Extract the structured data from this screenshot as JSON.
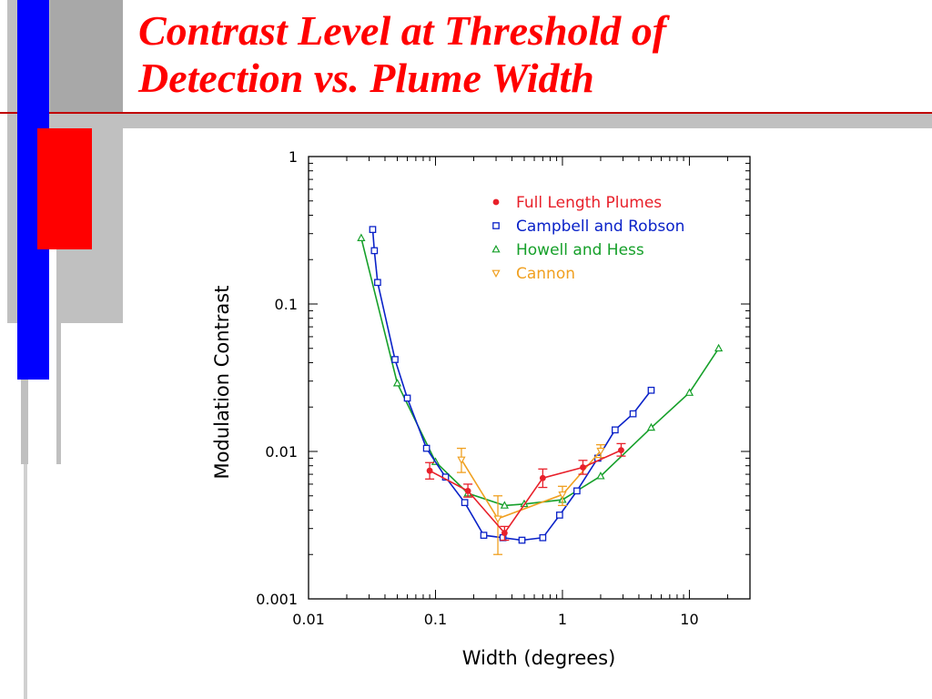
{
  "slide": {
    "title_line1": "Contrast Level at Threshold of",
    "title_line2": "Detection vs.  Plume Width",
    "colors": {
      "title": "#ff0000",
      "bar_blue": "#0000ff",
      "bar_red": "#ff0000",
      "bar_gray": "#c0c0c0",
      "rule": "#c00000"
    }
  },
  "chart_data": {
    "type": "line",
    "xlabel": "Width (degrees)",
    "ylabel": "Modulation Contrast",
    "xscale": "log",
    "yscale": "log",
    "xlim": [
      0.01,
      30
    ],
    "ylim": [
      0.001,
      1
    ],
    "x_ticks": [
      0.01,
      0.1,
      1,
      10
    ],
    "x_tick_labels": [
      "0.01",
      "0.1",
      "1",
      "10"
    ],
    "y_ticks": [
      0.001,
      0.01,
      0.1,
      1
    ],
    "y_tick_labels": [
      "0.001",
      "0.01",
      "0.1",
      "1"
    ],
    "grid": false,
    "legend_position": "top-right",
    "series": [
      {
        "name": "Full Length Plumes",
        "color": "#e8202a",
        "marker": "dot",
        "points": [
          {
            "x": 0.09,
            "y": 0.0074,
            "lo": 0.0065,
            "hi": 0.0084
          },
          {
            "x": 0.18,
            "y": 0.0054,
            "lo": 0.0049,
            "hi": 0.006
          },
          {
            "x": 0.35,
            "y": 0.0028,
            "lo": 0.0025,
            "hi": 0.0031
          },
          {
            "x": 0.7,
            "y": 0.0066,
            "lo": 0.0057,
            "hi": 0.0076
          },
          {
            "x": 1.45,
            "y": 0.0078,
            "lo": 0.007,
            "hi": 0.0087
          },
          {
            "x": 2.9,
            "y": 0.0102,
            "lo": 0.0093,
            "hi": 0.0113
          }
        ]
      },
      {
        "name": "Campbell and Robson",
        "color": "#0a22c8",
        "marker": "square",
        "points": [
          {
            "x": 0.032,
            "y": 0.32
          },
          {
            "x": 0.033,
            "y": 0.23
          },
          {
            "x": 0.035,
            "y": 0.14
          },
          {
            "x": 0.048,
            "y": 0.042
          },
          {
            "x": 0.06,
            "y": 0.023
          },
          {
            "x": 0.085,
            "y": 0.0105
          },
          {
            "x": 0.12,
            "y": 0.0067
          },
          {
            "x": 0.17,
            "y": 0.0045
          },
          {
            "x": 0.24,
            "y": 0.0027
          },
          {
            "x": 0.34,
            "y": 0.0026
          },
          {
            "x": 0.48,
            "y": 0.0025
          },
          {
            "x": 0.7,
            "y": 0.0026
          },
          {
            "x": 0.95,
            "y": 0.0037
          },
          {
            "x": 1.3,
            "y": 0.0054
          },
          {
            "x": 1.9,
            "y": 0.009
          },
          {
            "x": 2.6,
            "y": 0.014
          },
          {
            "x": 3.6,
            "y": 0.018
          },
          {
            "x": 5.0,
            "y": 0.026
          }
        ]
      },
      {
        "name": "Howell and Hess",
        "color": "#16a02a",
        "marker": "triangle-up",
        "points": [
          {
            "x": 0.026,
            "y": 0.28
          },
          {
            "x": 0.05,
            "y": 0.029
          },
          {
            "x": 0.1,
            "y": 0.0085
          },
          {
            "x": 0.18,
            "y": 0.0052
          },
          {
            "x": 0.35,
            "y": 0.0043
          },
          {
            "x": 0.5,
            "y": 0.0044
          },
          {
            "x": 1.0,
            "y": 0.0047
          },
          {
            "x": 2.0,
            "y": 0.0068
          },
          {
            "x": 5.0,
            "y": 0.0145
          },
          {
            "x": 10.0,
            "y": 0.025
          },
          {
            "x": 17.0,
            "y": 0.05
          }
        ]
      },
      {
        "name": "Cannon",
        "color": "#f0a020",
        "marker": "triangle-down",
        "points": [
          {
            "x": 0.16,
            "y": 0.0088,
            "lo": 0.0072,
            "hi": 0.0105
          },
          {
            "x": 0.31,
            "y": 0.0035,
            "lo": 0.002,
            "hi": 0.005
          },
          {
            "x": 1.0,
            "y": 0.0051,
            "lo": 0.0043,
            "hi": 0.0058
          },
          {
            "x": 2.0,
            "y": 0.0101,
            "lo": 0.0091,
            "hi": 0.0111
          }
        ]
      }
    ]
  }
}
